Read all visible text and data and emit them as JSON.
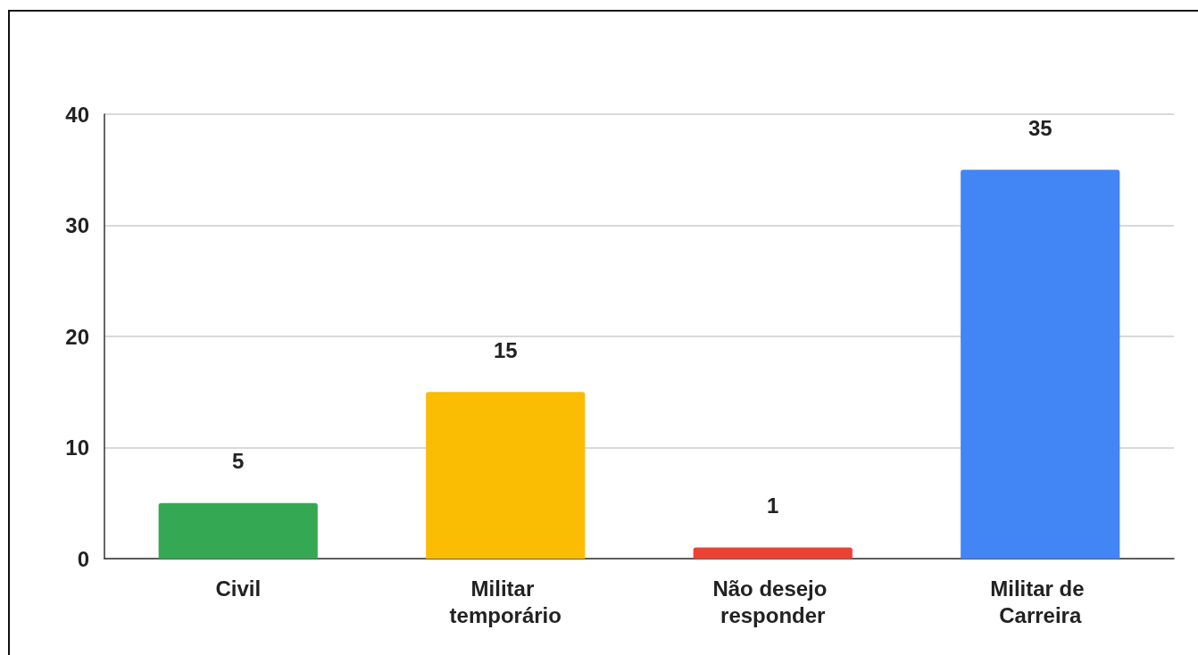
{
  "chart_data": {
    "type": "bar",
    "categories": [
      "Civil",
      "Militar temporário",
      "Não desejo responder",
      "Militar de Carreira"
    ],
    "values": [
      5,
      15,
      1,
      35
    ],
    "colors": [
      "#34a853",
      "#fbbc04",
      "#ea4335",
      "#4285f4"
    ],
    "ylim": [
      0,
      40
    ],
    "yticks": [
      0,
      10,
      20,
      30,
      40
    ],
    "grid": "y",
    "data_labels": true
  }
}
